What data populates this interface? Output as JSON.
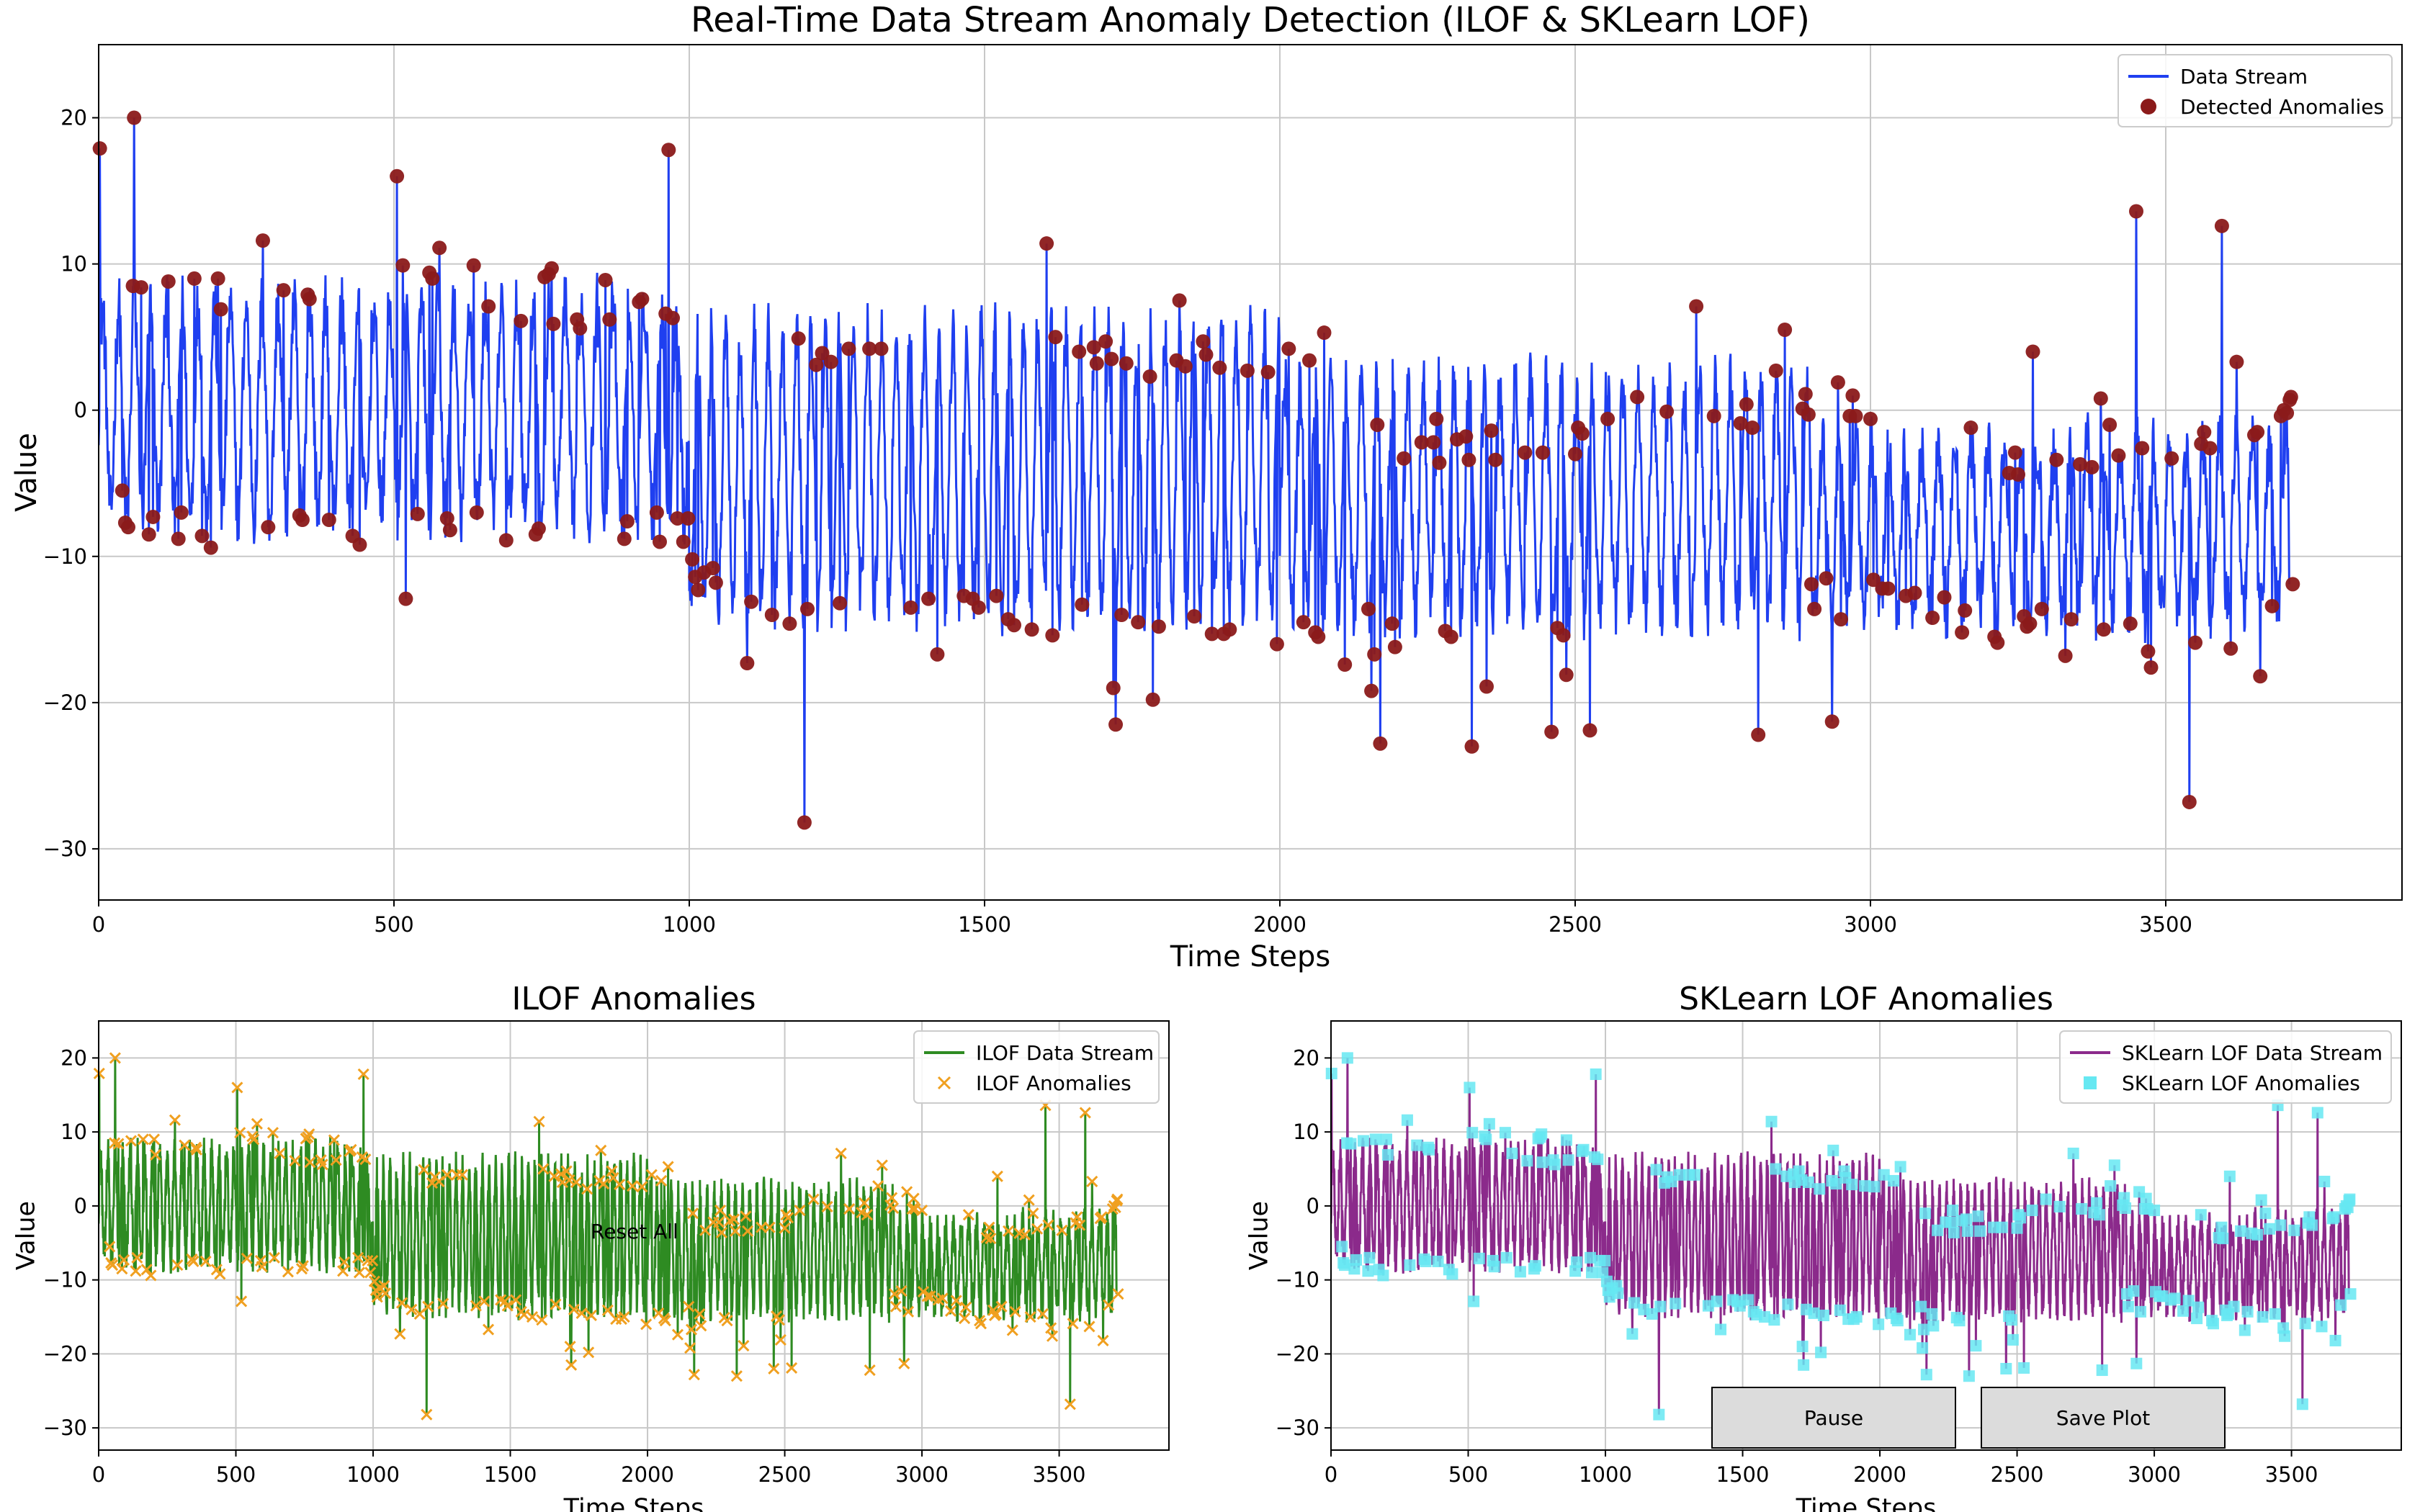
{
  "chart_data": [
    {
      "id": "main",
      "type": "line",
      "title": "Real-Time Data Stream Anomaly Detection (ILOF & SKLearn LOF)",
      "xlabel": "Time Steps",
      "ylabel": "Value",
      "xlim": [
        0,
        3900
      ],
      "ylim": [
        -33.5,
        25
      ],
      "xticks": [
        0,
        500,
        1000,
        1500,
        2000,
        2500,
        3000,
        3500
      ],
      "yticks": [
        -30,
        -20,
        -10,
        0,
        10,
        20
      ],
      "grid": true,
      "legend_position": "upper right",
      "n_points": 3710,
      "series": [
        {
          "name": "Data Stream",
          "kind": "line",
          "color": "#1f3ff0"
        },
        {
          "name": "Detected Anomalies",
          "kind": "scatter",
          "marker": "circle",
          "color": "#8b1a1a"
        }
      ]
    },
    {
      "id": "ilof",
      "type": "line",
      "title": "ILOF Anomalies",
      "xlabel": "Time Steps",
      "ylabel": "Value",
      "xlim": [
        0,
        3900
      ],
      "ylim": [
        -33,
        25
      ],
      "xticks": [
        0,
        500,
        1000,
        1500,
        2000,
        2500,
        3000,
        3500
      ],
      "yticks": [
        -30,
        -20,
        -10,
        0,
        10,
        20
      ],
      "grid": true,
      "legend_position": "upper right",
      "series": [
        {
          "name": "ILOF Data Stream",
          "kind": "line",
          "color": "#2e8b22"
        },
        {
          "name": "ILOF Anomalies",
          "kind": "scatter",
          "marker": "x",
          "color": "#f0a020"
        }
      ]
    },
    {
      "id": "sklearn",
      "type": "line",
      "title": "SKLearn LOF Anomalies",
      "xlabel": "Time Steps",
      "ylabel": "Value",
      "xlim": [
        0,
        3900
      ],
      "ylim": [
        -33,
        25
      ],
      "xticks": [
        0,
        500,
        1000,
        1500,
        2000,
        2500,
        3000,
        3500
      ],
      "yticks": [
        -30,
        -20,
        -10,
        0,
        10,
        20
      ],
      "grid": true,
      "legend_position": "upper right",
      "series": [
        {
          "name": "SKLearn LOF Data Stream",
          "kind": "line",
          "color": "#8b2a8b"
        },
        {
          "name": "SKLearn LOF Anomalies",
          "kind": "scatter",
          "marker": "square",
          "color": "#66e8f2"
        }
      ]
    }
  ],
  "anomalies": [
    [
      2,
      17.9
    ],
    [
      40,
      -5.5
    ],
    [
      45,
      -7.7
    ],
    [
      50,
      -8
    ],
    [
      58,
      8.5
    ],
    [
      60,
      20
    ],
    [
      72,
      8.4
    ],
    [
      85,
      -8.5
    ],
    [
      92,
      -7.3
    ],
    [
      118,
      8.8
    ],
    [
      135,
      -8.8
    ],
    [
      140,
      -7
    ],
    [
      162,
      9
    ],
    [
      175,
      -8.6
    ],
    [
      190,
      -9.4
    ],
    [
      202,
      9
    ],
    [
      207,
      6.9
    ],
    [
      278,
      11.6
    ],
    [
      287,
      -8
    ],
    [
      313,
      8.2
    ],
    [
      340,
      -7.2
    ],
    [
      345,
      -7.5
    ],
    [
      354,
      7.9
    ],
    [
      357,
      7.6
    ],
    [
      390,
      -7.5
    ],
    [
      430,
      -8.6
    ],
    [
      442,
      -9.2
    ],
    [
      505,
      16
    ],
    [
      515,
      9.9
    ],
    [
      520,
      -12.9
    ],
    [
      540,
      -7.1
    ],
    [
      560,
      9.4
    ],
    [
      565,
      9
    ],
    [
      577,
      11.1
    ],
    [
      590,
      -7.4
    ],
    [
      595,
      -8.2
    ],
    [
      635,
      9.9
    ],
    [
      640,
      -7
    ],
    [
      660,
      7.1
    ],
    [
      690,
      -8.9
    ],
    [
      715,
      6.1
    ],
    [
      740,
      -8.5
    ],
    [
      745,
      -8.1
    ],
    [
      755,
      9.1
    ],
    [
      762,
      9.3
    ],
    [
      767,
      9.7
    ],
    [
      770,
      5.9
    ],
    [
      810,
      6.2
    ],
    [
      815,
      5.6
    ],
    [
      858,
      8.9
    ],
    [
      865,
      6.2
    ],
    [
      890,
      -8.8
    ],
    [
      895,
      -7.6
    ],
    [
      915,
      7.4
    ],
    [
      920,
      7.6
    ],
    [
      945,
      -7
    ],
    [
      950,
      -9
    ],
    [
      960,
      6.6
    ],
    [
      965,
      17.8
    ],
    [
      972,
      6.3
    ],
    [
      980,
      -7.4
    ],
    [
      990,
      -9
    ],
    [
      998,
      -7.4
    ],
    [
      1005,
      -10.2
    ],
    [
      1010,
      -11.4
    ],
    [
      1015,
      -12.3
    ],
    [
      1025,
      -11.1
    ],
    [
      1040,
      -10.8
    ],
    [
      1045,
      -11.8
    ],
    [
      1098,
      -17.3
    ],
    [
      1105,
      -13.1
    ],
    [
      1140,
      -14
    ],
    [
      1170,
      -14.6
    ],
    [
      1185,
      4.9
    ],
    [
      1195,
      -28.2
    ],
    [
      1200,
      -13.6
    ],
    [
      1215,
      3.1
    ],
    [
      1225,
      3.9
    ],
    [
      1240,
      3.3
    ],
    [
      1255,
      -13.2
    ],
    [
      1270,
      4.2
    ],
    [
      1305,
      4.2
    ],
    [
      1325,
      4.2
    ],
    [
      1375,
      -13.5
    ],
    [
      1405,
      -12.9
    ],
    [
      1420,
      -16.7
    ],
    [
      1465,
      -12.7
    ],
    [
      1480,
      -12.9
    ],
    [
      1490,
      -13.5
    ],
    [
      1520,
      -12.7
    ],
    [
      1540,
      -14.3
    ],
    [
      1550,
      -14.7
    ],
    [
      1580,
      -15
    ],
    [
      1605,
      11.4
    ],
    [
      1615,
      -15.4
    ],
    [
      1620,
      5
    ],
    [
      1660,
      4
    ],
    [
      1665,
      -13.3
    ],
    [
      1685,
      4.3
    ],
    [
      1690,
      3.2
    ],
    [
      1705,
      4.7
    ],
    [
      1715,
      3.5
    ],
    [
      1718,
      -19
    ],
    [
      1722,
      -21.5
    ],
    [
      1732,
      -14
    ],
    [
      1740,
      3.2
    ],
    [
      1760,
      -14.5
    ],
    [
      1780,
      2.3
    ],
    [
      1785,
      -19.8
    ],
    [
      1795,
      -14.8
    ],
    [
      1825,
      3.4
    ],
    [
      1830,
      7.5
    ],
    [
      1840,
      3
    ],
    [
      1855,
      -14.1
    ],
    [
      1870,
      4.7
    ],
    [
      1875,
      3.8
    ],
    [
      1885,
      -15.3
    ],
    [
      1898,
      2.9
    ],
    [
      1905,
      -15.3
    ],
    [
      1915,
      -15
    ],
    [
      1945,
      2.7
    ],
    [
      1980,
      2.6
    ],
    [
      1995,
      -16
    ],
    [
      2015,
      4.2
    ],
    [
      2040,
      -14.5
    ],
    [
      2050,
      3.4
    ],
    [
      2060,
      -15.2
    ],
    [
      2065,
      -15.5
    ],
    [
      2075,
      5.3
    ],
    [
      2110,
      -17.4
    ],
    [
      2150,
      -13.6
    ],
    [
      2155,
      -19.2
    ],
    [
      2160,
      -16.7
    ],
    [
      2165,
      -1
    ],
    [
      2170,
      -22.8
    ],
    [
      2190,
      -14.6
    ],
    [
      2195,
      -16.2
    ],
    [
      2210,
      -3.3
    ],
    [
      2240,
      -2.2
    ],
    [
      2260,
      -2.2
    ],
    [
      2265,
      -0.6
    ],
    [
      2270,
      -3.6
    ],
    [
      2280,
      -15.1
    ],
    [
      2290,
      -15.5
    ],
    [
      2300,
      -2
    ],
    [
      2315,
      -1.8
    ],
    [
      2320,
      -3.4
    ],
    [
      2325,
      -23
    ],
    [
      2350,
      -18.9
    ],
    [
      2358,
      -1.4
    ],
    [
      2365,
      -3.4
    ],
    [
      2415,
      -2.9
    ],
    [
      2445,
      -2.9
    ],
    [
      2460,
      -22
    ],
    [
      2470,
      -14.9
    ],
    [
      2480,
      -15.4
    ],
    [
      2485,
      -18.1
    ],
    [
      2500,
      -3
    ],
    [
      2505,
      -1.2
    ],
    [
      2512,
      -1.6
    ],
    [
      2525,
      -21.9
    ],
    [
      2555,
      -0.6
    ],
    [
      2605,
      0.9
    ],
    [
      2655,
      -0.1
    ],
    [
      2705,
      7.1
    ],
    [
      2735,
      -0.4
    ],
    [
      2780,
      -0.9
    ],
    [
      2790,
      0.4
    ],
    [
      2800,
      -1.2
    ],
    [
      2810,
      -22.2
    ],
    [
      2840,
      2.7
    ],
    [
      2855,
      5.5
    ],
    [
      2885,
      0.1
    ],
    [
      2890,
      1.1
    ],
    [
      2895,
      -0.3
    ],
    [
      2900,
      -11.9
    ],
    [
      2905,
      -13.6
    ],
    [
      2925,
      -11.5
    ],
    [
      2935,
      -21.3
    ],
    [
      2945,
      1.9
    ],
    [
      2950,
      -14.3
    ],
    [
      2965,
      -0.4
    ],
    [
      2970,
      1
    ],
    [
      2975,
      -0.4
    ],
    [
      3000,
      -0.6
    ],
    [
      3005,
      -11.6
    ],
    [
      3020,
      -12.2
    ],
    [
      3030,
      -12.2
    ],
    [
      3060,
      -12.7
    ],
    [
      3075,
      -12.5
    ],
    [
      3105,
      -14.2
    ],
    [
      3125,
      -12.8
    ],
    [
      3155,
      -15.2
    ],
    [
      3160,
      -13.7
    ],
    [
      3170,
      -1.2
    ],
    [
      3210,
      -15.5
    ],
    [
      3215,
      -15.9
    ],
    [
      3235,
      -4.3
    ],
    [
      3245,
      -2.9
    ],
    [
      3250,
      -4.4
    ],
    [
      3260,
      -14.1
    ],
    [
      3265,
      -14.8
    ],
    [
      3270,
      -14.6
    ],
    [
      3275,
      4
    ],
    [
      3290,
      -13.6
    ],
    [
      3315,
      -3.4
    ],
    [
      3330,
      -16.8
    ],
    [
      3340,
      -14.3
    ],
    [
      3355,
      -3.7
    ],
    [
      3375,
      -3.9
    ],
    [
      3390,
      0.8
    ],
    [
      3395,
      -15
    ],
    [
      3405,
      -1
    ],
    [
      3420,
      -3.1
    ],
    [
      3440,
      -14.6
    ],
    [
      3450,
      13.6
    ],
    [
      3460,
      -2.6
    ],
    [
      3470,
      -16.5
    ],
    [
      3475,
      -17.6
    ],
    [
      3510,
      -3.3
    ],
    [
      3540,
      -26.8
    ],
    [
      3550,
      -15.9
    ],
    [
      3560,
      -2.3
    ],
    [
      3565,
      -1.5
    ],
    [
      3575,
      -2.6
    ],
    [
      3595,
      12.6
    ],
    [
      3610,
      -16.3
    ],
    [
      3620,
      3.3
    ],
    [
      3650,
      -1.7
    ],
    [
      3655,
      -1.5
    ],
    [
      3660,
      -18.2
    ],
    [
      3680,
      -13.4
    ],
    [
      3695,
      -0.4
    ],
    [
      3700,
      0
    ],
    [
      3705,
      -0.2
    ],
    [
      3710,
      0.7
    ],
    [
      3712,
      0.9
    ],
    [
      3715,
      -11.9
    ]
  ],
  "widgets": {
    "reset_label": "Reset All",
    "pause_label": "Pause",
    "save_label": "Save Plot"
  },
  "colors": {
    "axes_edge": "#000000",
    "grid": "#c8c8c8",
    "button_face": "#dcdcdc"
  }
}
